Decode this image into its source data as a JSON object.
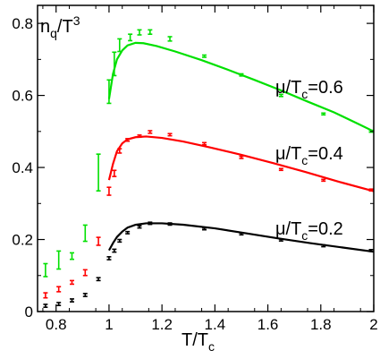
{
  "chart_data": {
    "type": "scatter",
    "title": "",
    "ylabel": {
      "main": "n",
      "sub": "q",
      "rest": "/T",
      "sup": "3"
    },
    "xlabel": {
      "main": "T/T",
      "sub": "c"
    },
    "xlim": [
      0.73,
      2.0
    ],
    "ylim": [
      0.0,
      0.85
    ],
    "x_ticks": [
      {
        "value": 0.8,
        "label": "0.8"
      },
      {
        "value": 1.0,
        "label": "1"
      },
      {
        "value": 1.2,
        "label": "1.2"
      },
      {
        "value": 1.4,
        "label": "1.4"
      },
      {
        "value": 1.6,
        "label": "1.6"
      },
      {
        "value": 1.8,
        "label": "1.8"
      },
      {
        "value": 2.0,
        "label": "2"
      }
    ],
    "y_ticks": [
      {
        "value": 0.0,
        "label": "0"
      },
      {
        "value": 0.2,
        "label": "0.2"
      },
      {
        "value": 0.4,
        "label": "0.4"
      },
      {
        "value": 0.6,
        "label": "0.6"
      },
      {
        "value": 0.8,
        "label": "0.8"
      }
    ],
    "grid": false,
    "legend": "none",
    "series": [
      {
        "label": {
          "main": "μ/T",
          "sub": "c",
          "rest": "=0.6"
        },
        "color": "#00e000",
        "points": [
          {
            "x": 0.76,
            "lo": 0.097,
            "hi": 0.133
          },
          {
            "x": 0.81,
            "lo": 0.118,
            "hi": 0.168
          },
          {
            "x": 0.86,
            "lo": 0.145,
            "hi": 0.163
          },
          {
            "x": 0.91,
            "lo": 0.195,
            "hi": 0.24
          },
          {
            "x": 0.96,
            "lo": 0.335,
            "hi": 0.437
          },
          {
            "x": 1.0,
            "lo": 0.578,
            "hi": 0.643
          },
          {
            "x": 1.02,
            "lo": 0.655,
            "hi": 0.72
          },
          {
            "x": 1.04,
            "lo": 0.722,
            "hi": 0.757
          },
          {
            "x": 1.08,
            "lo": 0.752,
            "hi": 0.77
          },
          {
            "x": 1.115,
            "lo": 0.768,
            "hi": 0.782
          },
          {
            "x": 1.155,
            "lo": 0.77,
            "hi": 0.782
          },
          {
            "x": 1.23,
            "lo": 0.751,
            "hi": 0.763
          },
          {
            "x": 1.36,
            "lo": 0.706,
            "hi": 0.712
          },
          {
            "x": 1.5,
            "lo": 0.654,
            "hi": 0.66
          },
          {
            "x": 1.65,
            "lo": 0.597,
            "hi": 0.603
          },
          {
            "x": 1.81,
            "lo": 0.546,
            "hi": 0.551
          },
          {
            "x": 1.99,
            "lo": 0.498,
            "hi": 0.503
          }
        ],
        "curve": [
          {
            "x": 1.0,
            "y": 0.59
          },
          {
            "x": 1.015,
            "y": 0.66
          },
          {
            "x": 1.03,
            "y": 0.7
          },
          {
            "x": 1.05,
            "y": 0.725
          },
          {
            "x": 1.07,
            "y": 0.739
          },
          {
            "x": 1.1,
            "y": 0.746
          },
          {
            "x": 1.13,
            "y": 0.745
          },
          {
            "x": 1.18,
            "y": 0.737
          },
          {
            "x": 1.25,
            "y": 0.722
          },
          {
            "x": 1.35,
            "y": 0.698
          },
          {
            "x": 1.45,
            "y": 0.671
          },
          {
            "x": 1.55,
            "y": 0.643
          },
          {
            "x": 1.65,
            "y": 0.614
          },
          {
            "x": 1.75,
            "y": 0.583
          },
          {
            "x": 1.85,
            "y": 0.553
          },
          {
            "x": 1.95,
            "y": 0.518
          },
          {
            "x": 2.0,
            "y": 0.5
          }
        ]
      },
      {
        "label": {
          "main": "μ/T",
          "sub": "c",
          "rest": "=0.4"
        },
        "color": "#ff0000",
        "points": [
          {
            "x": 0.76,
            "lo": 0.038,
            "hi": 0.052
          },
          {
            "x": 0.81,
            "lo": 0.055,
            "hi": 0.069
          },
          {
            "x": 0.86,
            "lo": 0.076,
            "hi": 0.086
          },
          {
            "x": 0.91,
            "lo": 0.1,
            "hi": 0.116
          },
          {
            "x": 0.96,
            "lo": 0.184,
            "hi": 0.206
          },
          {
            "x": 1.0,
            "lo": 0.323,
            "hi": 0.345
          },
          {
            "x": 1.02,
            "lo": 0.375,
            "hi": 0.392
          },
          {
            "x": 1.04,
            "lo": 0.44,
            "hi": 0.452
          },
          {
            "x": 1.07,
            "lo": 0.473,
            "hi": 0.48
          },
          {
            "x": 1.115,
            "lo": 0.484,
            "hi": 0.49
          },
          {
            "x": 1.155,
            "lo": 0.495,
            "hi": 0.502
          },
          {
            "x": 1.23,
            "lo": 0.488,
            "hi": 0.494
          },
          {
            "x": 1.36,
            "lo": 0.463,
            "hi": 0.469
          },
          {
            "x": 1.5,
            "lo": 0.425,
            "hi": 0.431
          },
          {
            "x": 1.65,
            "lo": 0.392,
            "hi": 0.397
          },
          {
            "x": 1.81,
            "lo": 0.362,
            "hi": 0.367
          },
          {
            "x": 1.99,
            "lo": 0.335,
            "hi": 0.34
          }
        ],
        "curve": [
          {
            "x": 1.0,
            "y": 0.365
          },
          {
            "x": 1.015,
            "y": 0.41
          },
          {
            "x": 1.03,
            "y": 0.445
          },
          {
            "x": 1.05,
            "y": 0.467
          },
          {
            "x": 1.07,
            "y": 0.478
          },
          {
            "x": 1.1,
            "y": 0.484
          },
          {
            "x": 1.14,
            "y": 0.486
          },
          {
            "x": 1.2,
            "y": 0.482
          },
          {
            "x": 1.28,
            "y": 0.472
          },
          {
            "x": 1.38,
            "y": 0.456
          },
          {
            "x": 1.5,
            "y": 0.435
          },
          {
            "x": 1.62,
            "y": 0.412
          },
          {
            "x": 1.74,
            "y": 0.388
          },
          {
            "x": 1.86,
            "y": 0.362
          },
          {
            "x": 2.0,
            "y": 0.334
          }
        ]
      },
      {
        "label": {
          "main": "μ/T",
          "sub": "c",
          "rest": "=0.2"
        },
        "color": "#000000",
        "points": [
          {
            "x": 0.76,
            "lo": 0.012,
            "hi": 0.02
          },
          {
            "x": 0.81,
            "lo": 0.017,
            "hi": 0.025
          },
          {
            "x": 0.86,
            "lo": 0.027,
            "hi": 0.035
          },
          {
            "x": 0.91,
            "lo": 0.042,
            "hi": 0.05
          },
          {
            "x": 0.96,
            "lo": 0.086,
            "hi": 0.094
          },
          {
            "x": 1.0,
            "lo": 0.144,
            "hi": 0.152
          },
          {
            "x": 1.02,
            "lo": 0.165,
            "hi": 0.173
          },
          {
            "x": 1.04,
            "lo": 0.193,
            "hi": 0.2
          },
          {
            "x": 1.07,
            "lo": 0.216,
            "hi": 0.222
          },
          {
            "x": 1.115,
            "lo": 0.232,
            "hi": 0.238
          },
          {
            "x": 1.155,
            "lo": 0.242,
            "hi": 0.248
          },
          {
            "x": 1.23,
            "lo": 0.24,
            "hi": 0.246
          },
          {
            "x": 1.36,
            "lo": 0.227,
            "hi": 0.232
          },
          {
            "x": 1.5,
            "lo": 0.213,
            "hi": 0.218
          },
          {
            "x": 1.65,
            "lo": 0.196,
            "hi": 0.201
          },
          {
            "x": 1.81,
            "lo": 0.18,
            "hi": 0.185
          },
          {
            "x": 1.99,
            "lo": 0.167,
            "hi": 0.172
          }
        ],
        "curve": [
          {
            "x": 1.0,
            "y": 0.17
          },
          {
            "x": 1.015,
            "y": 0.19
          },
          {
            "x": 1.03,
            "y": 0.207
          },
          {
            "x": 1.05,
            "y": 0.222
          },
          {
            "x": 1.07,
            "y": 0.233
          },
          {
            "x": 1.1,
            "y": 0.241
          },
          {
            "x": 1.14,
            "y": 0.245
          },
          {
            "x": 1.2,
            "y": 0.245
          },
          {
            "x": 1.28,
            "y": 0.241
          },
          {
            "x": 1.4,
            "y": 0.231
          },
          {
            "x": 1.52,
            "y": 0.217
          },
          {
            "x": 1.64,
            "y": 0.203
          },
          {
            "x": 1.76,
            "y": 0.19
          },
          {
            "x": 1.88,
            "y": 0.178
          },
          {
            "x": 2.0,
            "y": 0.166
          }
        ]
      }
    ]
  }
}
